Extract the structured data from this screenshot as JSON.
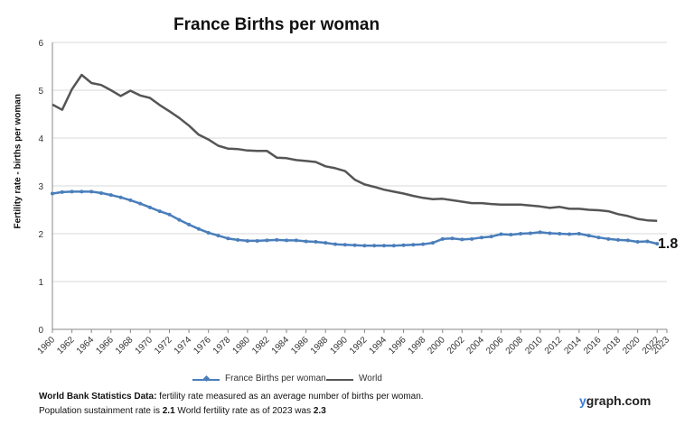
{
  "chart_data": {
    "type": "line",
    "title": "France Births per woman",
    "ylabel": "Fertility rate - births per woman",
    "xlabel": "",
    "ylim": [
      0,
      6
    ],
    "yticks": [
      "0",
      "1",
      "2",
      "3",
      "4",
      "5",
      "6"
    ],
    "xticks": [
      "1960",
      "1962",
      "1964",
      "1966",
      "1968",
      "1970",
      "1972",
      "1974",
      "1976",
      "1978",
      "1980",
      "1982",
      "1984",
      "1986",
      "1988",
      "1990",
      "1992",
      "1994",
      "1996",
      "1998",
      "2000",
      "2002",
      "2004",
      "2006",
      "2008",
      "2010",
      "2012",
      "2014",
      "2016",
      "2018",
      "2020",
      "2022",
      "2023"
    ],
    "grid": true,
    "legend": "bottom",
    "x": [
      1960,
      1961,
      1962,
      1963,
      1964,
      1965,
      1966,
      1967,
      1968,
      1969,
      1970,
      1971,
      1972,
      1973,
      1974,
      1975,
      1976,
      1977,
      1978,
      1979,
      1980,
      1981,
      1982,
      1983,
      1984,
      1985,
      1986,
      1987,
      1988,
      1989,
      1990,
      1991,
      1992,
      1993,
      1994,
      1995,
      1996,
      1997,
      1998,
      1999,
      2000,
      2001,
      2002,
      2003,
      2004,
      2005,
      2006,
      2007,
      2008,
      2009,
      2010,
      2011,
      2012,
      2013,
      2014,
      2015,
      2016,
      2017,
      2018,
      2019,
      2020,
      2021,
      2022
    ],
    "series": [
      {
        "name": "France Births per woman",
        "color": "#4a7ebb",
        "markers": true,
        "values": [
          2.84,
          2.87,
          2.88,
          2.88,
          2.88,
          2.85,
          2.81,
          2.76,
          2.7,
          2.63,
          2.55,
          2.47,
          2.4,
          2.29,
          2.19,
          2.1,
          2.02,
          1.96,
          1.9,
          1.87,
          1.85,
          1.85,
          1.86,
          1.87,
          1.86,
          1.86,
          1.84,
          1.83,
          1.81,
          1.78,
          1.77,
          1.76,
          1.75,
          1.75,
          1.75,
          1.75,
          1.76,
          1.77,
          1.78,
          1.81,
          1.89,
          1.9,
          1.88,
          1.89,
          1.92,
          1.94,
          1.99,
          1.98,
          2.0,
          2.01,
          2.03,
          2.01,
          2.0,
          1.99,
          2.0,
          1.96,
          1.92,
          1.89,
          1.87,
          1.86,
          1.83,
          1.84,
          1.79
        ]
      },
      {
        "name": "World",
        "color": "#555555",
        "markers": false,
        "values": [
          4.7,
          4.59,
          5.02,
          5.32,
          5.15,
          5.11,
          5.0,
          4.88,
          4.99,
          4.89,
          4.84,
          4.69,
          4.56,
          4.42,
          4.26,
          4.07,
          3.97,
          3.84,
          3.78,
          3.77,
          3.74,
          3.73,
          3.73,
          3.59,
          3.58,
          3.54,
          3.52,
          3.5,
          3.41,
          3.37,
          3.31,
          3.13,
          3.03,
          2.98,
          2.92,
          2.88,
          2.84,
          2.79,
          2.75,
          2.72,
          2.73,
          2.7,
          2.67,
          2.64,
          2.64,
          2.62,
          2.61,
          2.61,
          2.61,
          2.59,
          2.57,
          2.54,
          2.56,
          2.52,
          2.52,
          2.5,
          2.49,
          2.47,
          2.41,
          2.37,
          2.31,
          2.28,
          2.27
        ]
      }
    ],
    "end_annotation": "1.8"
  },
  "footer": {
    "line1_bold": "World Bank Statistics Data:",
    "line1_text": " fertility rate measured as an average number  of births per woman.",
    "line2_prefix": "Population sustainment rate is ",
    "line2_value1": "2.1",
    "line2_middle": "   World fertility rate as of 2023 was ",
    "line2_value2": "2.3"
  },
  "brand": {
    "y": "y",
    "rest": "graph.com"
  }
}
